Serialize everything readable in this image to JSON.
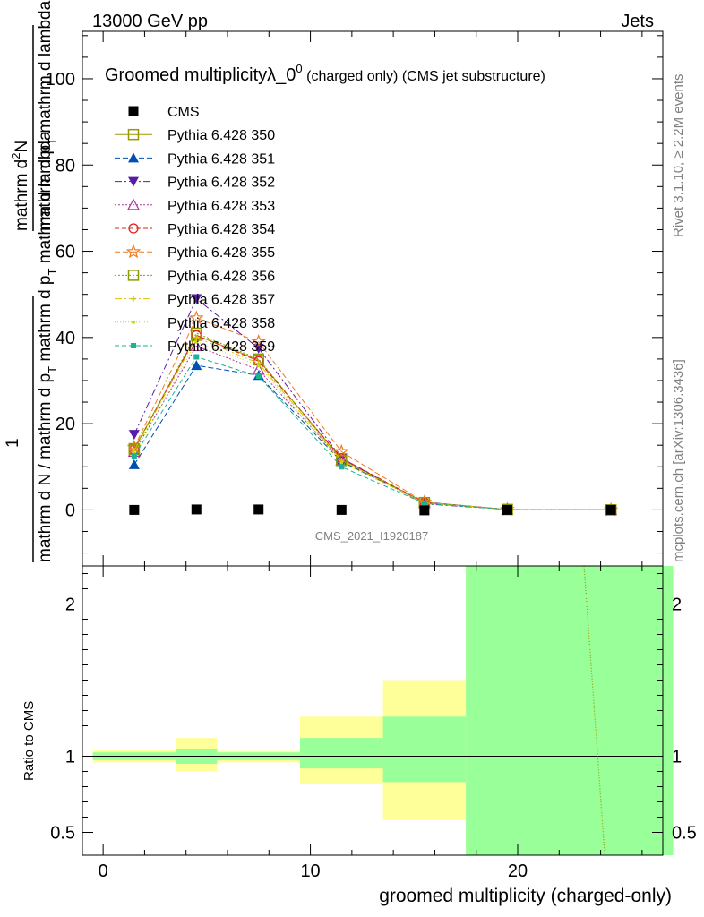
{
  "header": {
    "left": "13000 GeV pp",
    "right": "Jets"
  },
  "side_labels": {
    "rivet": "Rivet 3.1.10, ≥ 2.2M events",
    "mcplots": "mcplots.cern.ch [arXiv:1306.3436]"
  },
  "watermark": "CMS_2021_I1920187",
  "colors": {
    "data": "#000000",
    "ratio_band_inner": "#99ff99",
    "ratio_band_outer": "#ffff99"
  },
  "chart_data": [
    {
      "type": "line",
      "title": "Groomed multiplicityλ_0",
      "title_sup": "0",
      "title_suffix": "(charged only) (CMS jet substructure)",
      "ylabel_top": "mathrm d",
      "ylabel_top_sup": "2",
      "ylabel_top_n": "N",
      "ylabel_den": "mathrm d p",
      "ylabel_den_sub": "T",
      "ylabel_den_rest": "mathrm d lambda",
      "ylabel_prefactor": "1",
      "ylabel_prefactor_den": "mathrm d N / mathrm d p",
      "ylabel_prefactor_den_sub": "T",
      "ylabel_prefactor_den_rest": "mathrm d p",
      "ylabel_prefactor_den_sub2": "T",
      "ylabel_prefactor_den_rest2": "mathrm d lambda",
      "xlim": [
        -1,
        27
      ],
      "ylim": [
        -13,
        111
      ],
      "yticks": [
        0,
        20,
        40,
        60,
        80,
        100
      ],
      "legend_position": "top-left",
      "x": [
        1.5,
        4.5,
        7.5,
        11.5,
        15.5,
        19.5,
        24.5
      ],
      "series": [
        {
          "name": "CMS",
          "color": "#000000",
          "marker": "square",
          "dash": "none",
          "values": [
            0.0,
            0.1,
            0.1,
            0.0,
            -0.1,
            0.0,
            0.0
          ]
        },
        {
          "name": "Pythia 6.428 350",
          "color": "#999900",
          "marker": "open-square",
          "dash": "none",
          "values": [
            14.2,
            40.5,
            34.8,
            11.8,
            1.7,
            0.1,
            0.0
          ]
        },
        {
          "name": "Pythia 6.428 351",
          "color": "#0050b3",
          "marker": "triangle-up",
          "dash": "6,3",
          "values": [
            10.5,
            33.5,
            31.2,
            11.2,
            1.8,
            0.1,
            0.0
          ]
        },
        {
          "name": "Pythia 6.428 352",
          "color": "#5a1ca6",
          "marker": "triangle-down",
          "dash": "8,3,2,3",
          "values": [
            17.5,
            49.0,
            37.5,
            12.0,
            1.4,
            0.1,
            0.0
          ]
        },
        {
          "name": "Pythia 6.428 353",
          "color": "#b3339d",
          "marker": "open-triangle",
          "dash": "2,2",
          "values": [
            13.5,
            38.0,
            32.5,
            11.5,
            1.6,
            0.1,
            0.0
          ]
        },
        {
          "name": "Pythia 6.428 354",
          "color": "#e0201b",
          "marker": "open-circle",
          "dash": "5,3",
          "values": [
            14.0,
            40.5,
            34.5,
            12.0,
            1.7,
            0.1,
            0.0
          ]
        },
        {
          "name": "Pythia 6.428 355",
          "color": "#f07a22",
          "marker": "open-star",
          "dash": "6,3",
          "values": [
            14.5,
            44.5,
            39.0,
            13.5,
            1.8,
            0.1,
            0.0
          ]
        },
        {
          "name": "Pythia 6.428 356",
          "color": "#8f9900",
          "marker": "open-square",
          "dash": "2,2",
          "values": [
            14.0,
            41.0,
            35.0,
            11.5,
            1.7,
            0.1,
            0.0
          ]
        },
        {
          "name": "Pythia 6.428 357",
          "color": "#d9c200",
          "marker": "small-cross",
          "dash": "8,3,2,3",
          "values": [
            13.8,
            40.0,
            34.0,
            11.5,
            1.6,
            0.1,
            0.0
          ]
        },
        {
          "name": "Pythia 6.428 358",
          "color": "#c6d90f",
          "marker": "dot",
          "dash": "1,2",
          "values": [
            13.0,
            39.0,
            33.5,
            11.0,
            1.6,
            0.1,
            0.0
          ]
        },
        {
          "name": "Pythia 6.428 359",
          "color": "#1ab394",
          "marker": "small-square",
          "dash": "5,3",
          "values": [
            12.5,
            35.5,
            31.0,
            10.0,
            1.5,
            0.1,
            0.0
          ]
        }
      ]
    },
    {
      "type": "area",
      "ylabel": "Ratio to CMS",
      "xlabel": "groomed multiplicity (charged-only)",
      "xlim": [
        -1,
        27
      ],
      "ylim": [
        0.35,
        2.25
      ],
      "yticks": [
        0.5,
        1,
        2
      ],
      "xticks": [
        0,
        10,
        20
      ],
      "bins": [
        {
          "x_low": -0.5,
          "x_high": 3.5,
          "inner": [
            0.975,
            1.025
          ],
          "outer": [
            0.96,
            1.04
          ]
        },
        {
          "x_low": 3.5,
          "x_high": 5.5,
          "inner": [
            0.95,
            1.05
          ],
          "outer": [
            0.9,
            1.12
          ]
        },
        {
          "x_low": 5.5,
          "x_high": 9.5,
          "inner": [
            0.975,
            1.025
          ],
          "outer": [
            0.96,
            1.035
          ]
        },
        {
          "x_low": 9.5,
          "x_high": 13.5,
          "inner": [
            0.92,
            1.12
          ],
          "outer": [
            0.82,
            1.26
          ]
        },
        {
          "x_low": 13.5,
          "x_high": 17.5,
          "inner": [
            0.83,
            1.26
          ],
          "outer": [
            0.58,
            1.5
          ]
        },
        {
          "x_low": 17.5,
          "x_high": 27.5,
          "inner": [
            0.35,
            2.25
          ],
          "outer": [
            0.35,
            2.25
          ]
        }
      ],
      "ratio_line": {
        "color": "#999900",
        "dash": "1,2",
        "x": [
          23.2,
          24.2
        ],
        "y": [
          2.25,
          0.35
        ]
      }
    }
  ]
}
